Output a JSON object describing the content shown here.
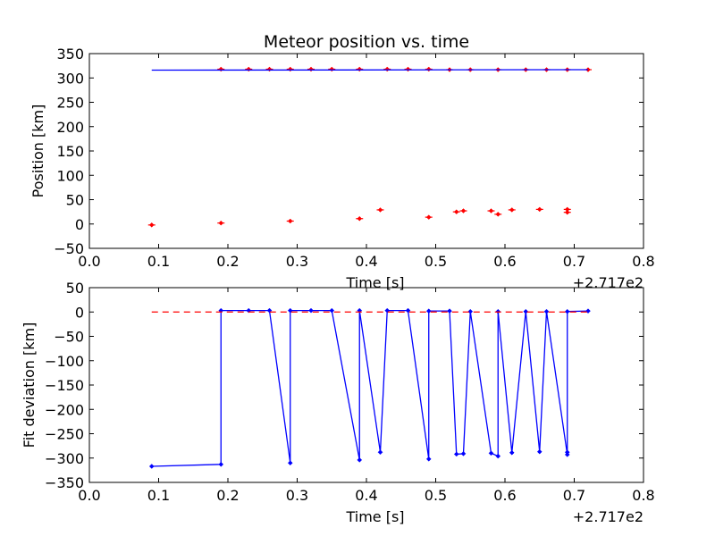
{
  "chart_data": [
    {
      "type": "scatter",
      "title": "Meteor position vs. time",
      "xlabel": "Time [s]",
      "ylabel": "Position [km]",
      "x_offset_label": "+2.717e2",
      "xlim": [
        0.0,
        0.8
      ],
      "ylim": [
        -50,
        350
      ],
      "xticks": [
        "0.0",
        "0.1",
        "0.2",
        "0.3",
        "0.4",
        "0.5",
        "0.6",
        "0.7",
        "0.8"
      ],
      "yticks": [
        "−50",
        "0",
        "50",
        "100",
        "150",
        "200",
        "250",
        "300",
        "350"
      ],
      "grid": false,
      "series": [
        {
          "style": "red-error-markers",
          "color": "#ff0000",
          "x": [
            0.09,
            0.19,
            0.23,
            0.26,
            0.29,
            0.32,
            0.35,
            0.39,
            0.43,
            0.46,
            0.49,
            0.52,
            0.55,
            0.59,
            0.63,
            0.66,
            0.69,
            0.72,
            0.19,
            0.29,
            0.39,
            0.42,
            0.49,
            0.53,
            0.54,
            0.58,
            0.59,
            0.61,
            0.65,
            0.69,
            0.69
          ],
          "y": [
            -2,
            318,
            318,
            318,
            318,
            318,
            318,
            318,
            318,
            318,
            318,
            317,
            317,
            317,
            317,
            317,
            317,
            317,
            2,
            6,
            11,
            29,
            14,
            25,
            27,
            27,
            20,
            29,
            30,
            30,
            24
          ]
        },
        {
          "style": "blue-fit-line",
          "color": "#0000ff",
          "x": [
            0.09,
            0.72
          ],
          "y": [
            316,
            317
          ]
        }
      ]
    },
    {
      "type": "line",
      "xlabel": "Time [s]",
      "ylabel": "Fit deviation [km]",
      "x_offset_label": "+2.717e2",
      "xlim": [
        0.0,
        0.8
      ],
      "ylim": [
        -350,
        50
      ],
      "xticks": [
        "0.0",
        "0.1",
        "0.2",
        "0.3",
        "0.4",
        "0.5",
        "0.6",
        "0.7",
        "0.8"
      ],
      "yticks": [
        "−350",
        "−300",
        "−250",
        "−200",
        "−150",
        "−100",
        "−50",
        "0",
        "50"
      ],
      "grid": false,
      "series": [
        {
          "style": "blue-line-markers",
          "color": "#0000ff",
          "x": [
            0.09,
            0.19,
            0.19,
            0.23,
            0.26,
            0.29,
            0.29,
            0.32,
            0.35,
            0.39,
            0.39,
            0.42,
            0.43,
            0.46,
            0.49,
            0.49,
            0.52,
            0.53,
            0.54,
            0.55,
            0.58,
            0.59,
            0.59,
            0.61,
            0.63,
            0.65,
            0.66,
            0.69,
            0.69,
            0.69,
            0.72
          ],
          "y": [
            -317,
            -313,
            3,
            3,
            3,
            -310,
            3,
            3,
            3,
            -304,
            3,
            -288,
            3,
            3,
            -302,
            2,
            2,
            -292,
            -291,
            1,
            -290,
            -296,
            1,
            -289,
            1,
            -287,
            1,
            -293,
            -288,
            1,
            2
          ]
        },
        {
          "style": "red-dashed-zero",
          "color": "#ff0000",
          "x": [
            0.09,
            0.72
          ],
          "y": [
            0,
            0
          ]
        }
      ]
    }
  ]
}
